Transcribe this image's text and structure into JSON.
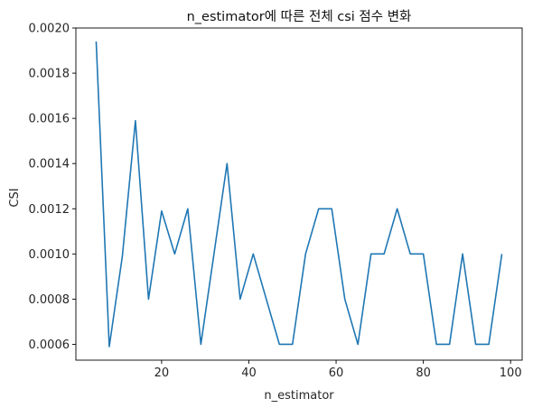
{
  "chart_data": {
    "type": "line",
    "title": "n_estimator에 따른 전체 csi 점수 변화",
    "xlabel": "n_estimator",
    "ylabel": "CSI",
    "xlim": [
      0.35,
      102.65
    ],
    "ylim": [
      0.00053,
      0.002
    ],
    "xticks": [
      20,
      40,
      60,
      80,
      100
    ],
    "yticks": [
      0.0006,
      0.0008,
      0.001,
      0.0012,
      0.0014,
      0.0016,
      0.0018,
      0.002
    ],
    "xtick_labels": [
      "20",
      "40",
      "60",
      "80",
      "100"
    ],
    "ytick_labels": [
      "0.0006",
      "0.0008",
      "0.0010",
      "0.0012",
      "0.0014",
      "0.0016",
      "0.0018",
      "0.0020"
    ],
    "grid": false,
    "line_color": "#1f77b4",
    "series": [
      {
        "x": [
          5,
          8,
          11,
          14,
          17,
          20,
          23,
          26,
          29,
          32,
          35,
          38,
          41,
          44,
          47,
          50,
          53,
          56,
          59,
          62,
          65,
          68,
          71,
          74,
          77,
          80,
          83,
          86,
          89,
          92,
          95,
          98
        ],
        "values": [
          0.00194,
          0.00059,
          0.00099,
          0.00159,
          0.0008,
          0.00119,
          0.001,
          0.0012,
          0.0006,
          0.001,
          0.0014,
          0.0008,
          0.001,
          0.0008,
          0.0006,
          0.0006,
          0.001,
          0.0012,
          0.0012,
          0.0008,
          0.0006,
          0.001,
          0.001,
          0.0012,
          0.001,
          0.001,
          0.0006,
          0.0006,
          0.001,
          0.0006,
          0.0006,
          0.001
        ]
      }
    ]
  }
}
